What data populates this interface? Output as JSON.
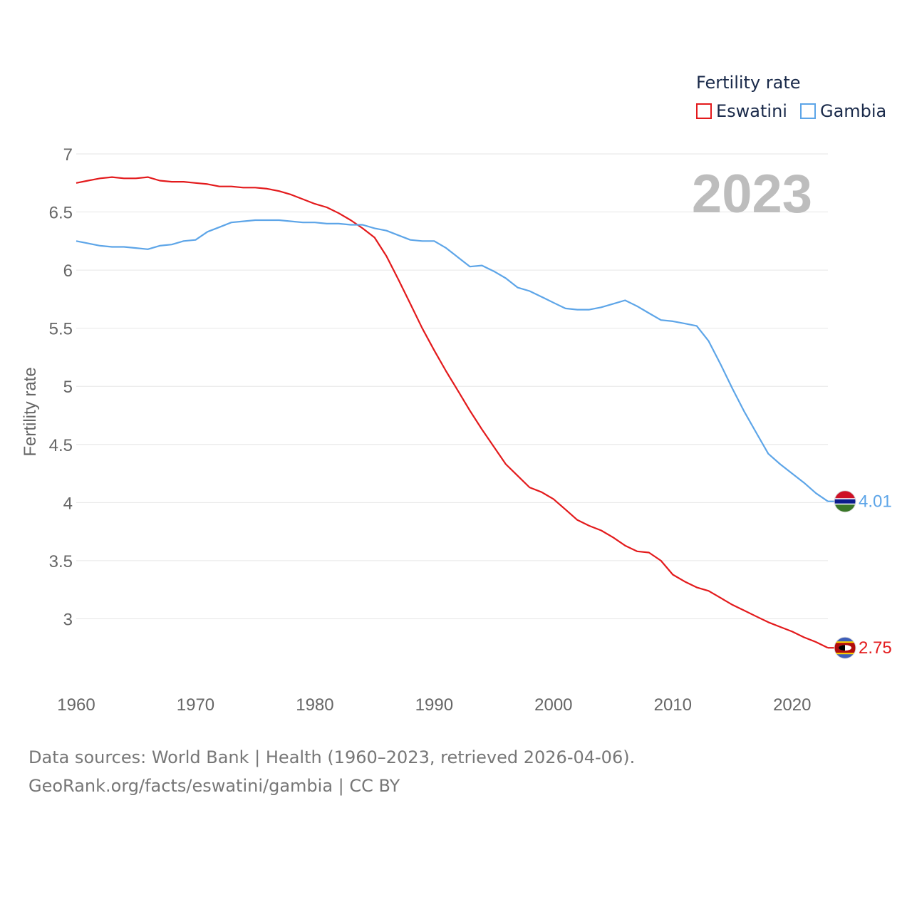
{
  "footer": {
    "sources": "Data sources: World Bank | Health (1960–2023, retrieved 2026-04-06).",
    "attribution": "GeoRank.org/facts/eswatini/gambia | CC BY"
  },
  "chart_data": {
    "type": "line",
    "title": "",
    "year_label": "2023",
    "xlabel": "",
    "ylabel": "Fertility rate",
    "legend_title": "Fertility rate",
    "legend_position": "top-right",
    "xlim": [
      1960,
      2023
    ],
    "ylim": [
      2.5,
      7
    ],
    "x_ticks": [
      1960,
      1970,
      1980,
      1990,
      2000,
      2010,
      2020
    ],
    "y_ticks": [
      3,
      3.5,
      4,
      4.5,
      5,
      5.5,
      6,
      6.5,
      7
    ],
    "grid": true,
    "x": [
      1960,
      1961,
      1962,
      1963,
      1964,
      1965,
      1966,
      1967,
      1968,
      1969,
      1970,
      1971,
      1972,
      1973,
      1974,
      1975,
      1976,
      1977,
      1978,
      1979,
      1980,
      1981,
      1982,
      1983,
      1984,
      1985,
      1986,
      1987,
      1988,
      1989,
      1990,
      1991,
      1992,
      1993,
      1994,
      1995,
      1996,
      1997,
      1998,
      1999,
      2000,
      2001,
      2002,
      2003,
      2004,
      2005,
      2006,
      2007,
      2008,
      2009,
      2010,
      2011,
      2012,
      2013,
      2014,
      2015,
      2016,
      2017,
      2018,
      2019,
      2020,
      2021,
      2022,
      2023
    ],
    "series": [
      {
        "name": "Eswatini",
        "color": "#e31a1c",
        "end_label": "2.75",
        "values": [
          6.75,
          6.77,
          6.79,
          6.8,
          6.79,
          6.79,
          6.8,
          6.77,
          6.76,
          6.76,
          6.75,
          6.74,
          6.72,
          6.72,
          6.71,
          6.71,
          6.7,
          6.68,
          6.65,
          6.61,
          6.57,
          6.54,
          6.49,
          6.43,
          6.36,
          6.28,
          6.12,
          5.92,
          5.71,
          5.5,
          5.31,
          5.13,
          4.96,
          4.79,
          4.63,
          4.48,
          4.33,
          4.23,
          4.13,
          4.09,
          4.03,
          3.94,
          3.85,
          3.8,
          3.76,
          3.7,
          3.63,
          3.58,
          3.57,
          3.5,
          3.38,
          3.32,
          3.27,
          3.24,
          3.18,
          3.12,
          3.07,
          3.02,
          2.97,
          2.93,
          2.89,
          2.84,
          2.8,
          2.75
        ]
      },
      {
        "name": "Gambia",
        "color": "#5da5e8",
        "end_label": "4.01",
        "values": [
          6.25,
          6.23,
          6.21,
          6.2,
          6.2,
          6.19,
          6.18,
          6.21,
          6.22,
          6.25,
          6.26,
          6.33,
          6.37,
          6.41,
          6.42,
          6.43,
          6.43,
          6.43,
          6.42,
          6.41,
          6.41,
          6.4,
          6.4,
          6.39,
          6.39,
          6.36,
          6.34,
          6.3,
          6.26,
          6.25,
          6.25,
          6.19,
          6.11,
          6.03,
          6.04,
          5.99,
          5.93,
          5.85,
          5.82,
          5.77,
          5.72,
          5.67,
          5.66,
          5.66,
          5.68,
          5.71,
          5.74,
          5.69,
          5.63,
          5.57,
          5.56,
          5.54,
          5.52,
          5.39,
          5.19,
          4.98,
          4.78,
          4.6,
          4.42,
          4.33,
          4.25,
          4.17,
          4.08,
          4.01
        ]
      }
    ]
  }
}
